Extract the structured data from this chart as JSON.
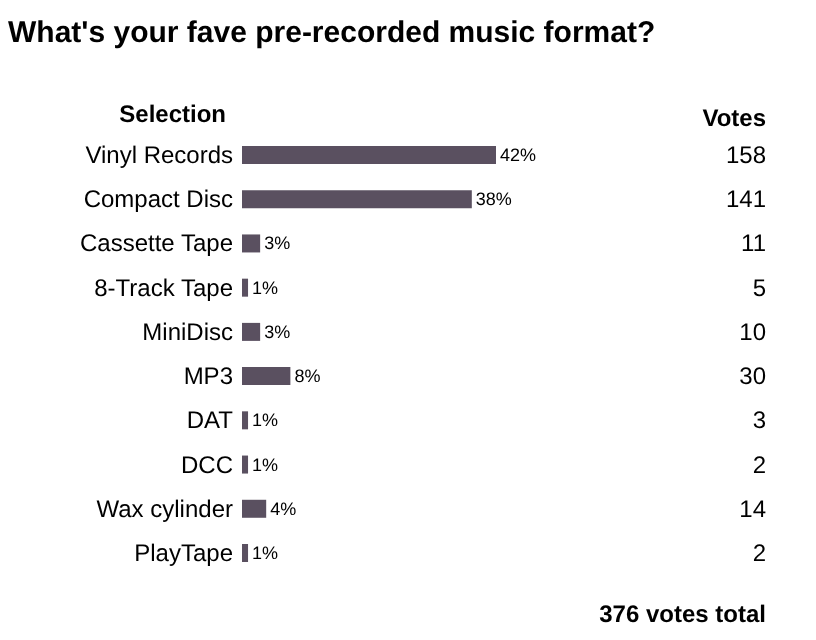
{
  "chart_data": {
    "type": "bar",
    "orientation": "horizontal",
    "title": "What's your fave pre-recorded music format?",
    "ylabel": "Selection",
    "categories": [
      "Vinyl Records",
      "Compact Disc",
      "Cassette Tape",
      "8-Track Tape",
      "MiniDisc",
      "MP3",
      "DAT",
      "DCC",
      "Wax cylinder",
      "PlayTape"
    ],
    "values": [
      42,
      38,
      3,
      1,
      3,
      8,
      1,
      1,
      4,
      1
    ],
    "value_labels": [
      "42%",
      "38%",
      "3%",
      "1%",
      "3%",
      "8%",
      "1%",
      "1%",
      "4%",
      "1%"
    ],
    "color": "#5a5060",
    "annotations": [
      "Votes",
      "158",
      "141",
      "11",
      "5",
      "10",
      "30",
      "3",
      "2",
      "14",
      "2",
      "376 votes total"
    ]
  }
}
